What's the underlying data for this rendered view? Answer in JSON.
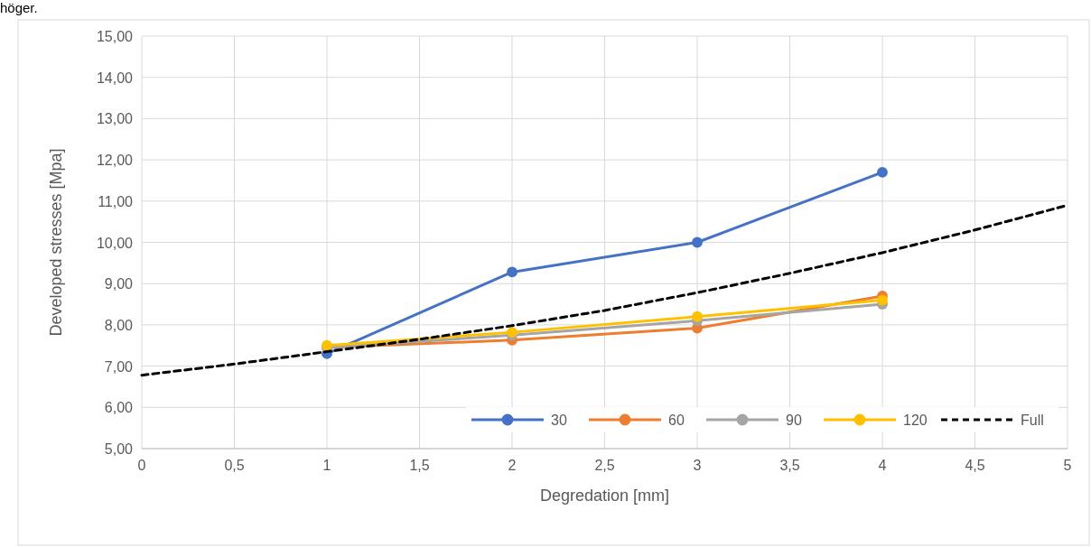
{
  "chart_data": {
    "type": "line",
    "xlabel": "Degredation [mm]",
    "ylabel": "Developed stresses [Mpa]",
    "annotations": [
      "höger."
    ],
    "xlim": [
      0,
      5
    ],
    "xticks": [
      0,
      {
        "value": 0.5,
        "label": "0,5"
      },
      1,
      {
        "value": 1.5,
        "label": "1,5"
      },
      2,
      {
        "value": 2.5,
        "label": "2,5"
      },
      3,
      {
        "value": 3.5,
        "label": "3,5"
      },
      4,
      {
        "value": 4.5,
        "label": "4,5"
      },
      5
    ],
    "ylim": [
      5,
      15
    ],
    "yticks": [
      {
        "value": 5,
        "label": "5,00"
      },
      {
        "value": 6,
        "label": "6,00"
      },
      {
        "value": 7,
        "label": "7,00"
      },
      {
        "value": 8,
        "label": "8,00"
      },
      {
        "value": 9,
        "label": "9,00"
      },
      {
        "value": 10,
        "label": "10,00"
      },
      {
        "value": 11,
        "label": "11,00"
      },
      {
        "value": 12,
        "label": "12,00"
      },
      {
        "value": 13,
        "label": "13,00"
      },
      {
        "value": 14,
        "label": "14,00"
      },
      {
        "value": 15,
        "label": "15,00"
      }
    ],
    "grid": true,
    "legend": "bottom right",
    "marker": "circle",
    "series": [
      {
        "name": "30",
        "color": "#4472c4",
        "x": [
          1,
          2,
          3,
          4
        ],
        "values": [
          7.3,
          9.28,
          10.0,
          11.7
        ]
      },
      {
        "name": "60",
        "color": "#ed7d31",
        "x": [
          1,
          2,
          3,
          4
        ],
        "values": [
          7.45,
          7.63,
          7.92,
          8.7
        ]
      },
      {
        "name": "90",
        "color": "#a5a5a5",
        "x": [
          1,
          2,
          3,
          4
        ],
        "values": [
          7.45,
          7.75,
          8.1,
          8.5
        ]
      },
      {
        "name": "120",
        "color": "#ffc000",
        "x": [
          1,
          2,
          3,
          4
        ],
        "values": [
          7.5,
          7.82,
          8.2,
          8.6
        ]
      },
      {
        "name": "Full",
        "color": "#000000",
        "marker": "none",
        "line_style": "dashed",
        "x": [
          0,
          0.5,
          1,
          1.5,
          2,
          2.5,
          3,
          3.5,
          4,
          4.5,
          5
        ],
        "values": [
          6.78,
          7.05,
          7.35,
          7.65,
          7.98,
          8.35,
          8.78,
          9.25,
          9.75,
          10.3,
          10.9
        ]
      }
    ]
  }
}
